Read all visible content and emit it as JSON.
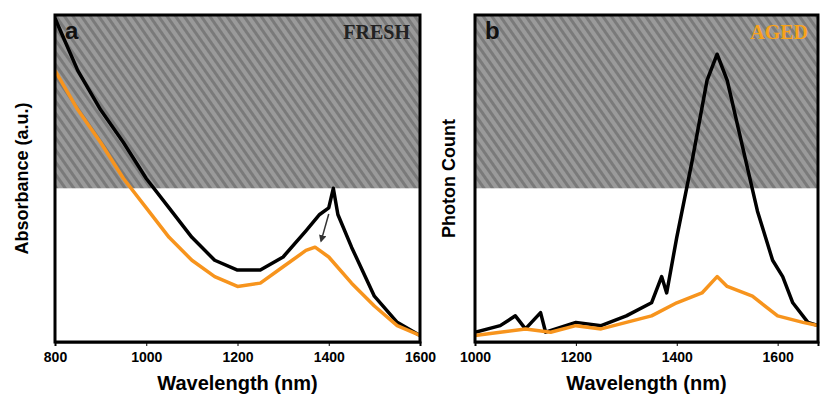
{
  "chart_data": [
    {
      "type": "line",
      "panel": "a",
      "annotations": [
        {
          "text": "FRESH",
          "color": "#222222"
        }
      ],
      "x_label": "Wavelength (nm)",
      "y_label": "Absorbance (a.u.)",
      "xlim": [
        800,
        1600
      ],
      "xticks": [
        800,
        1000,
        1200,
        1400,
        1600
      ],
      "ylim": [
        0,
        100
      ],
      "tick_labels": "x",
      "series": [
        {
          "color": "#000000",
          "x": [
            800,
            850,
            900,
            950,
            1000,
            1050,
            1100,
            1150,
            1200,
            1250,
            1300,
            1350,
            1380,
            1400,
            1410,
            1420,
            1450,
            1500,
            1550,
            1600
          ],
          "values": [
            99,
            83,
            71,
            61,
            50,
            41,
            32,
            25,
            22,
            22,
            26,
            34,
            39,
            41,
            47,
            39,
            29,
            14,
            6,
            2
          ]
        },
        {
          "color": "#f7941d",
          "x": [
            800,
            850,
            900,
            950,
            1000,
            1050,
            1100,
            1150,
            1200,
            1250,
            1300,
            1350,
            1370,
            1400,
            1450,
            1500,
            1550,
            1600
          ],
          "values": [
            83,
            71,
            61,
            50,
            41,
            32,
            25,
            20,
            17,
            18,
            23,
            28,
            29,
            26,
            18,
            11,
            5,
            2
          ]
        }
      ]
    },
    {
      "type": "line",
      "panel": "b",
      "annotations": [
        {
          "text": "AGED",
          "color": "#f7a21b"
        }
      ],
      "x_label": "Wavelength (nm)",
      "y_label": "Photon Count",
      "xlim": [
        1000,
        1680
      ],
      "xticks": [
        1000,
        1200,
        1400,
        1600
      ],
      "ylim": [
        0,
        100
      ],
      "tick_labels": "x",
      "series": [
        {
          "color": "#000000",
          "x": [
            1000,
            1050,
            1080,
            1100,
            1130,
            1140,
            1200,
            1250,
            1300,
            1350,
            1370,
            1380,
            1400,
            1430,
            1460,
            1480,
            1500,
            1530,
            1560,
            1590,
            1610,
            1630,
            1660,
            1680
          ],
          "values": [
            3,
            5,
            8,
            4,
            9,
            3,
            6,
            5,
            8,
            12,
            20,
            15,
            32,
            55,
            80,
            88,
            80,
            60,
            40,
            25,
            20,
            12,
            6,
            5
          ]
        },
        {
          "color": "#f7941d",
          "x": [
            1000,
            1050,
            1100,
            1150,
            1200,
            1250,
            1300,
            1350,
            1400,
            1450,
            1480,
            1500,
            1550,
            1600,
            1650,
            1680
          ],
          "values": [
            2,
            3,
            4,
            3,
            5,
            4,
            6,
            8,
            12,
            15,
            20,
            17,
            14,
            8,
            6,
            5
          ]
        }
      ]
    }
  ]
}
